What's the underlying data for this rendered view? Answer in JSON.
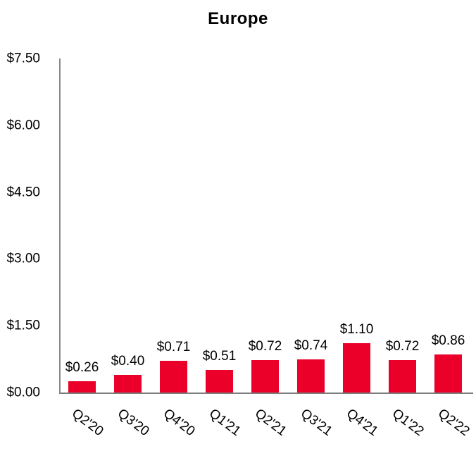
{
  "colors": {
    "bar": "#EA0029",
    "axis": "#808080",
    "text": "#000000",
    "background": "#FFFFFF"
  },
  "chart_data": {
    "type": "bar",
    "title": "Europe",
    "categories": [
      "Q2'20",
      "Q3'20",
      "Q4'20",
      "Q1'21",
      "Q2'21",
      "Q3'21",
      "Q4'21",
      "Q1'22",
      "Q2'22"
    ],
    "values": [
      0.26,
      0.4,
      0.71,
      0.51,
      0.72,
      0.74,
      1.1,
      0.72,
      0.86
    ],
    "value_labels": [
      "$0.26",
      "$0.40",
      "$0.71",
      "$0.51",
      "$0.72",
      "$0.74",
      "$1.10",
      "$0.72",
      "$0.86"
    ],
    "xlabel": "",
    "ylabel": "",
    "ylim": [
      0,
      7.5
    ],
    "ytick_values": [
      0,
      1.5,
      3.0,
      4.5,
      6.0,
      7.5
    ],
    "ytick_labels": [
      "$0.00",
      "$1.50",
      "$3.00",
      "$4.50",
      "$6.00",
      "$7.50"
    ],
    "grid": false,
    "legend": "none",
    "bar_color": "#EA0029",
    "x_label_rotation_deg": 37
  }
}
